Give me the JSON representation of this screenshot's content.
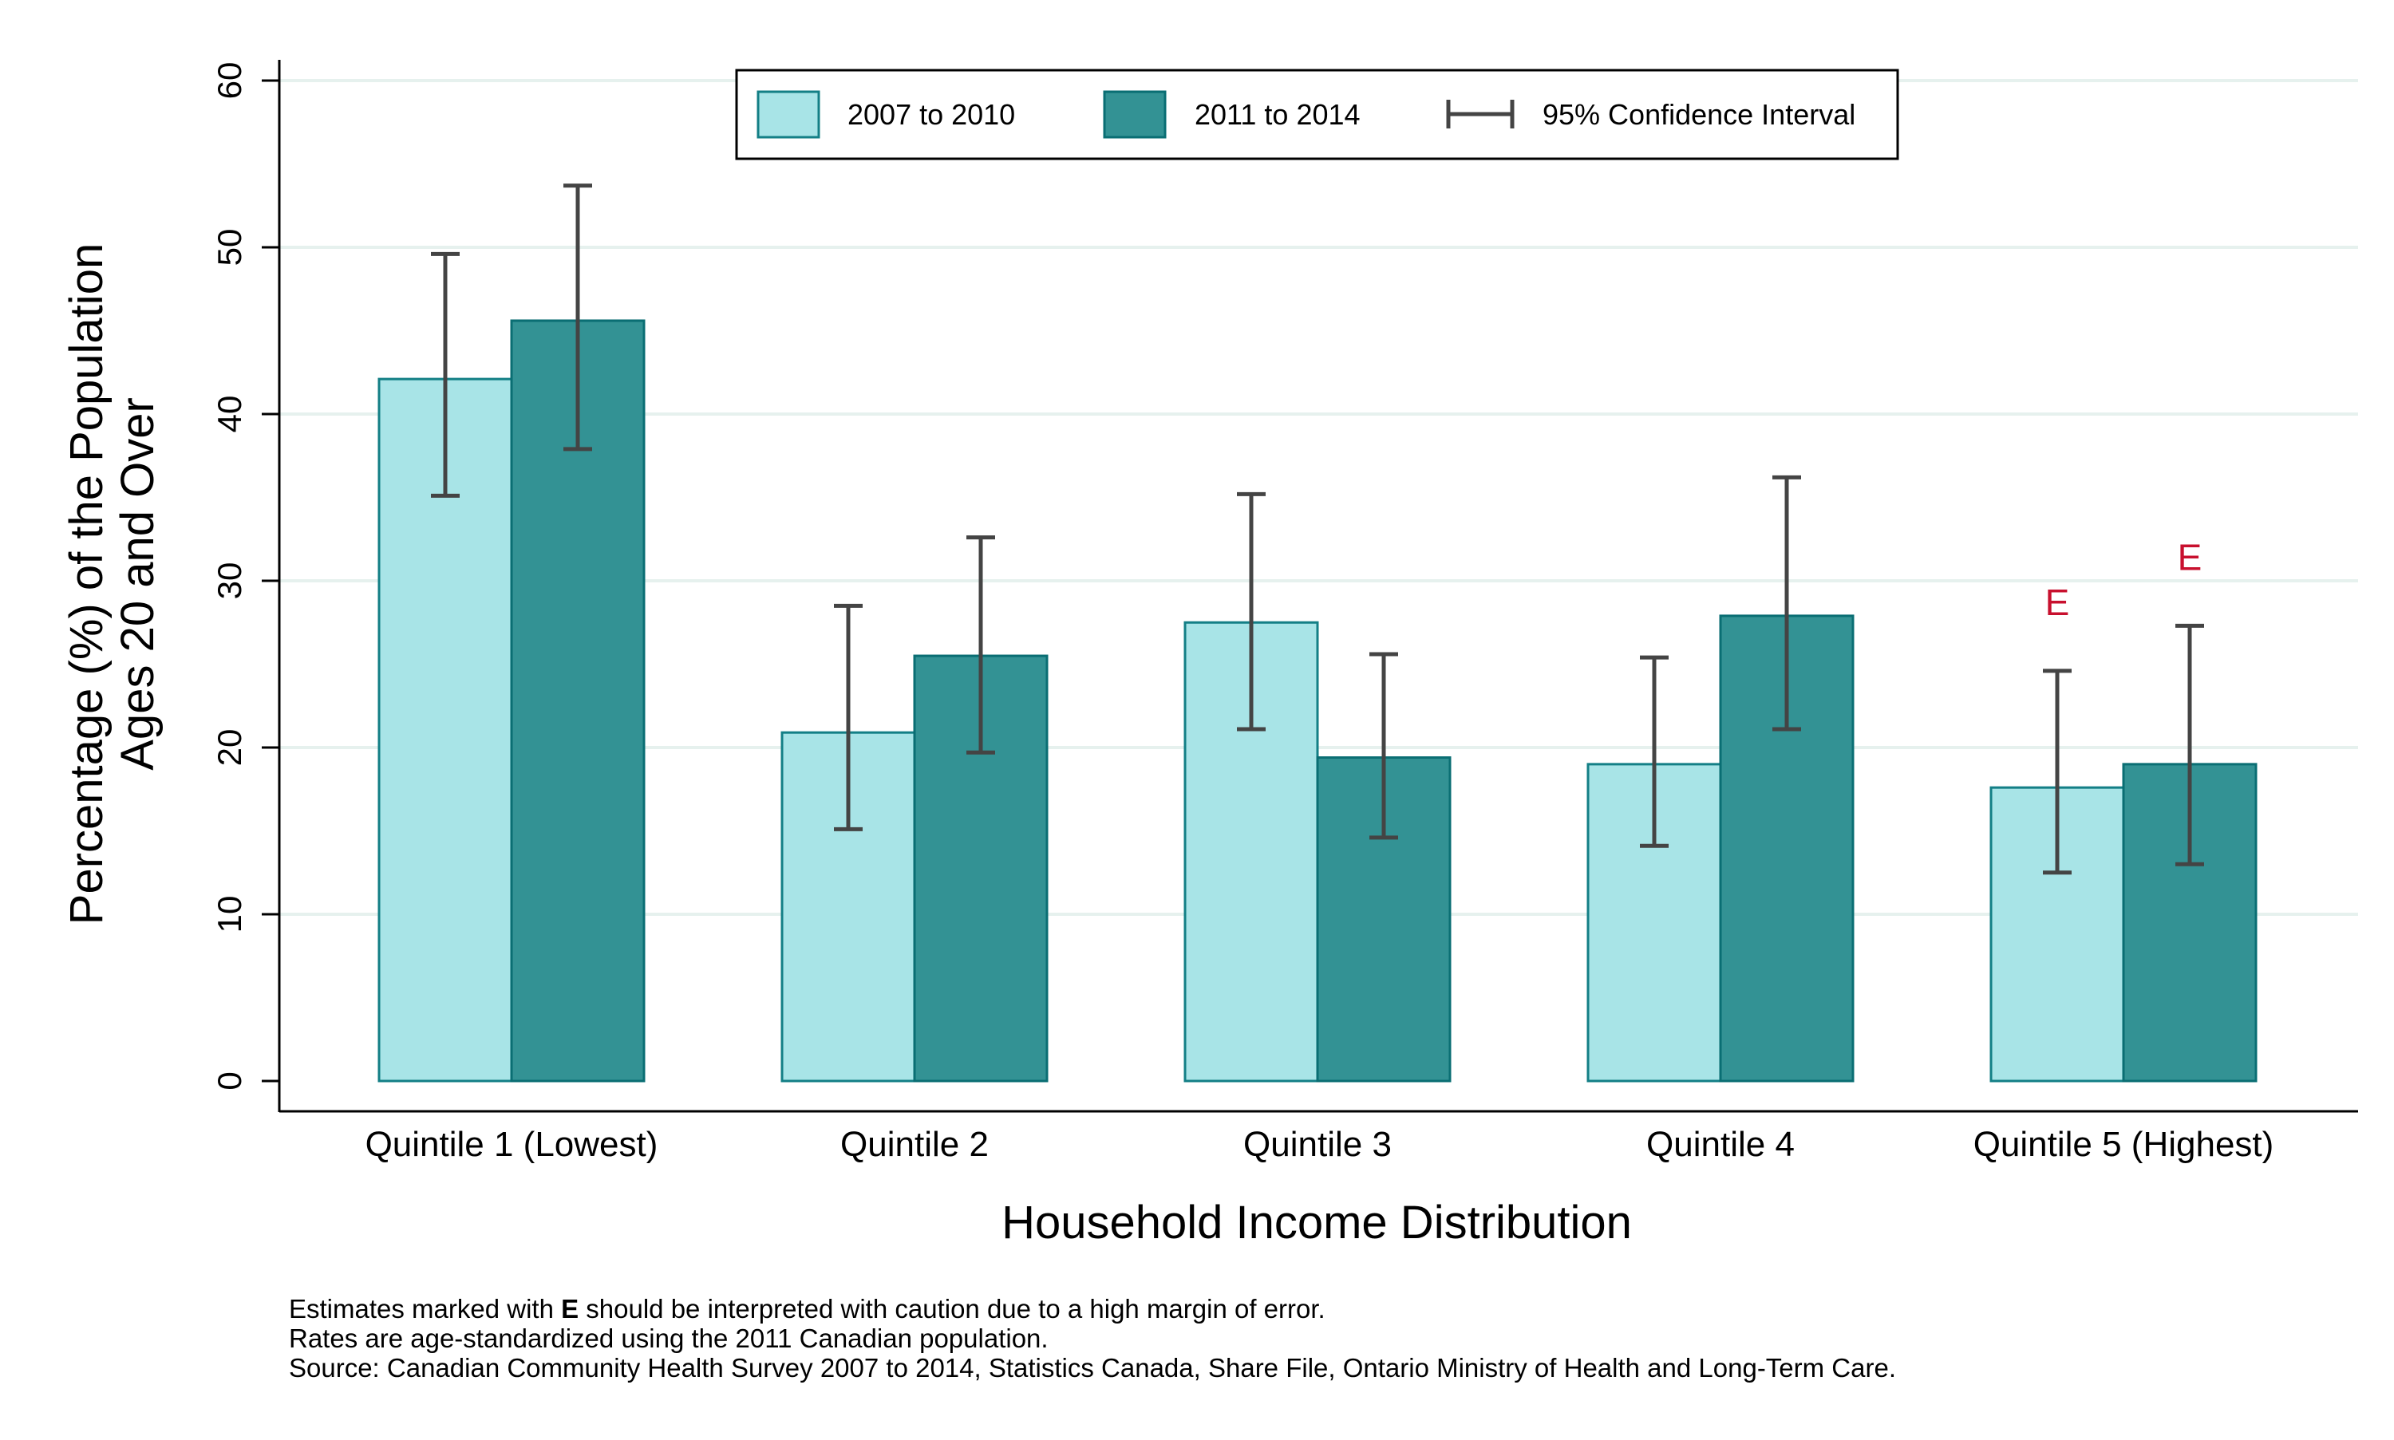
{
  "chart_data": {
    "type": "bar",
    "categories": [
      "Quintile 1 (Lowest)",
      "Quintile 2",
      "Quintile 3",
      "Quintile 4",
      "Quintile 5 (Highest)"
    ],
    "series": [
      {
        "name": "2007 to 2010",
        "values": [
          42.1,
          20.9,
          27.5,
          19.0,
          17.6
        ],
        "ci_low": [
          35.1,
          15.1,
          21.1,
          14.1,
          12.5
        ],
        "ci_high": [
          49.6,
          28.5,
          35.2,
          25.4,
          24.6
        ],
        "flags": [
          "",
          "",
          "",
          "",
          "E"
        ],
        "color": "#a8e4e7",
        "stroke": "#137f86"
      },
      {
        "name": "2011 to 2014",
        "values": [
          45.6,
          25.5,
          19.4,
          27.9,
          19.0
        ],
        "ci_low": [
          37.9,
          19.7,
          14.6,
          21.1,
          13.0
        ],
        "ci_high": [
          53.7,
          32.6,
          25.6,
          36.2,
          27.3
        ],
        "flags": [
          "",
          "",
          "",
          "",
          "E"
        ],
        "color": "#339294",
        "stroke": "#0a6e73"
      }
    ],
    "ylabel_line1": "Percentage (%) of the Population",
    "ylabel_line2": "Ages 20 and Over",
    "xlabel": "Household Income Distribution",
    "ylim": [
      0,
      60
    ],
    "yticks": [
      0,
      10,
      20,
      30,
      40,
      50,
      60
    ],
    "grid": true,
    "legend": {
      "placement": "top-center",
      "ci_label": "95% Confidence Interval"
    },
    "flag_marker": "E",
    "notes": {
      "line1_pre": "Estimates marked with ",
      "line1_bold": "E",
      "line1_post": " should be interpreted with caution due to a high margin of error.",
      "line2": "Rates are age-standardized using the 2011 Canadian population.",
      "line3": "Source: Canadian Community Health Survey 2007 to 2014, Statistics Canada, Share File, Ontario Ministry of Health and Long-Term Care."
    },
    "colors": {
      "grid": "#e6f1ee",
      "errorbar": "#444444",
      "flag": "#c8102e"
    }
  }
}
